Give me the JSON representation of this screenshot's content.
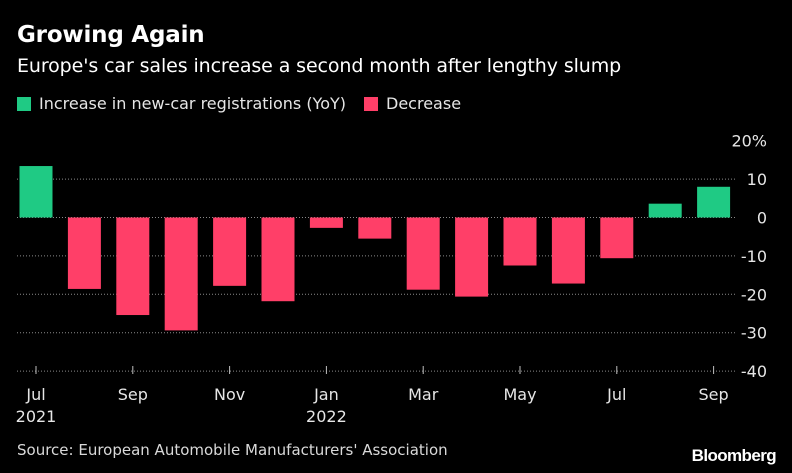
{
  "title": "Growing Again",
  "subtitle": "Europe's car sales increase a second month after lengthy slump",
  "legend": {
    "increase": "Increase in new-car registrations (YoY)",
    "decrease": "Decrease"
  },
  "colors": {
    "increase": "#1fca84",
    "decrease": "#ff3f68",
    "grid": "#8a8a8a",
    "background": "#000000"
  },
  "source": "Source: European Automobile Manufacturers' Association",
  "logo": "Bloomberg",
  "chart_data": {
    "type": "bar",
    "title": "Growing Again",
    "subtitle": "Europe's car sales increase a second month after lengthy slump",
    "xlabel": "",
    "ylabel": "",
    "ylim": [
      -40,
      20
    ],
    "yticks": [
      20,
      10,
      0,
      -10,
      -20,
      -30,
      -40
    ],
    "ytick_labels": [
      "20%",
      "10",
      "0",
      "-10",
      "-20",
      "-30",
      "-40"
    ],
    "grid": true,
    "legend_position": "top-left",
    "categories": [
      "Jul 2021",
      "Aug 2021",
      "Sep 2021",
      "Oct 2021",
      "Nov 2021",
      "Dec 2021",
      "Jan 2022",
      "Feb 2022",
      "Mar 2022",
      "Apr 2022",
      "May 2022",
      "Jun 2022",
      "Jul 2022",
      "Aug 2022",
      "Sep 2022"
    ],
    "values": [
      13.4,
      -18.6,
      -25.4,
      -29.4,
      -17.8,
      -21.8,
      -2.7,
      -5.5,
      -18.8,
      -20.6,
      -12.5,
      -17.2,
      -10.6,
      3.6,
      8.0
    ],
    "tick_labels": [
      {
        "index": 0,
        "line1": "Jul",
        "line2": "2021"
      },
      {
        "index": 2,
        "line1": "Sep",
        "line2": ""
      },
      {
        "index": 4,
        "line1": "Nov",
        "line2": ""
      },
      {
        "index": 6,
        "line1": "Jan",
        "line2": "2022"
      },
      {
        "index": 8,
        "line1": "Mar",
        "line2": ""
      },
      {
        "index": 10,
        "line1": "May",
        "line2": ""
      },
      {
        "index": 12,
        "line1": "Jul",
        "line2": ""
      },
      {
        "index": 14,
        "line1": "Sep",
        "line2": ""
      }
    ]
  }
}
